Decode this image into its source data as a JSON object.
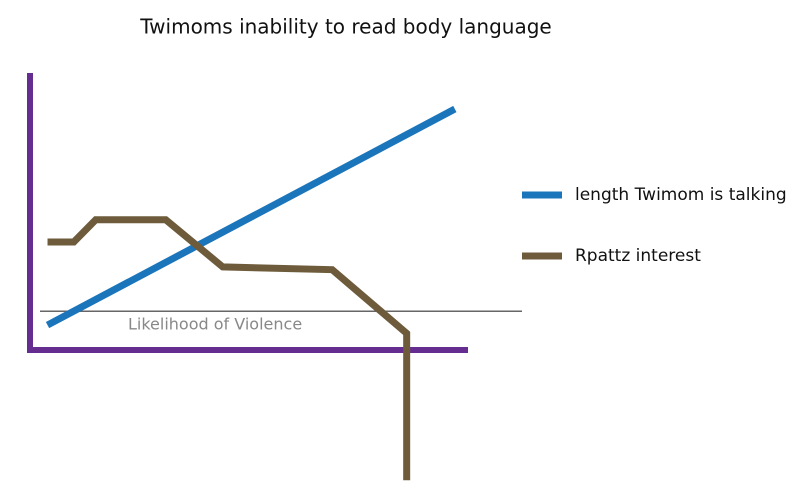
{
  "chart_data": {
    "type": "line",
    "title": "Twimoms inability to read body language",
    "xlim": [
      0,
      100
    ],
    "ylim": [
      0,
      100
    ],
    "axis_color": "#662d91",
    "series": [
      {
        "name": "length Twimom is talking",
        "color": "#1b75bb",
        "x": [
          4,
          97
        ],
        "values": [
          9,
          87
        ]
      },
      {
        "name": "Rpattz interest",
        "color": "#6d5b3b",
        "x": [
          4,
          10,
          15,
          31,
          44,
          69,
          86,
          86
        ],
        "values": [
          39,
          39,
          47,
          47,
          30,
          29,
          6,
          -47
        ]
      }
    ],
    "reference_line": {
      "value": 14,
      "label": "Likelihood of Violence",
      "color": "#666666"
    }
  }
}
